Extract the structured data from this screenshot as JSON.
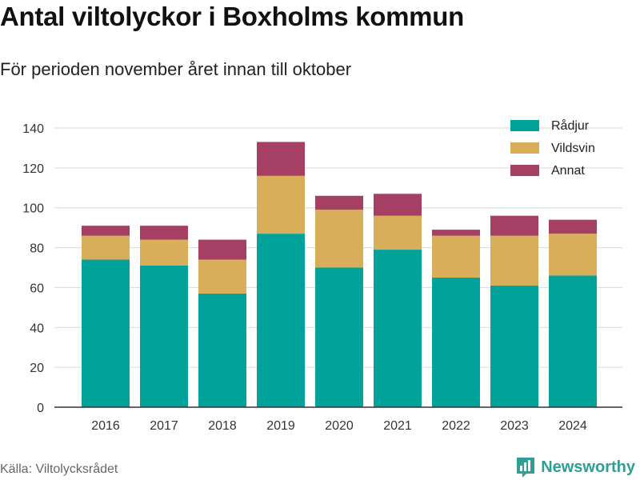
{
  "header": {
    "title": "Antal viltolyckor i Boxholms kommun",
    "subtitle": "För perioden november året innan till oktober"
  },
  "footer": {
    "source": "Källa: Viltolycksrådet",
    "brand": "Newsworthy",
    "brand_icon": "bar-chart-logo-icon"
  },
  "colors": {
    "radjur": "#00a29a",
    "vildsvin": "#d8ae5b",
    "annat": "#a53f63",
    "brand": "#2e9f96",
    "grid": "#d9d9d9"
  },
  "chart_data": {
    "type": "bar",
    "stacked": true,
    "categories": [
      "2016",
      "2017",
      "2018",
      "2019",
      "2020",
      "2021",
      "2022",
      "2023",
      "2024"
    ],
    "series": [
      {
        "name": "Rådjur",
        "values": [
          74,
          71,
          57,
          87,
          70,
          79,
          65,
          61,
          66
        ]
      },
      {
        "name": "Vildsvin",
        "values": [
          12,
          13,
          17,
          29,
          29,
          17,
          21,
          25,
          21
        ]
      },
      {
        "name": "Annat",
        "values": [
          5,
          7,
          10,
          17,
          7,
          11,
          3,
          10,
          7
        ]
      }
    ],
    "ylim": [
      0,
      140
    ],
    "yticks": [
      0,
      20,
      40,
      60,
      80,
      100,
      120,
      140
    ],
    "grid": true,
    "legend": "top-right",
    "xlabel": "",
    "ylabel": ""
  }
}
